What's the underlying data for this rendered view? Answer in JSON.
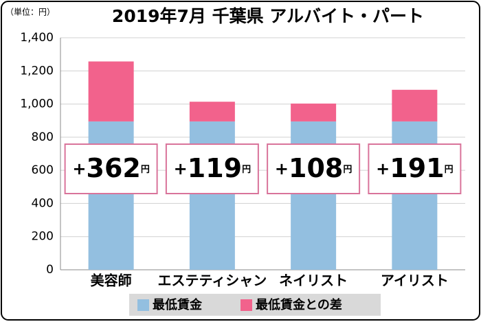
{
  "chart_data": {
    "type": "bar",
    "stacked": true,
    "title": "2019年7月 千葉県 アルバイト・パート",
    "unit_label": "（単位：円）",
    "categories": [
      "美容師",
      "エステティシャン",
      "ネイリスト",
      "アイリスト"
    ],
    "series": [
      {
        "name": "最低賃金",
        "color": "#93bfe0",
        "values": [
          895,
          895,
          895,
          895
        ]
      },
      {
        "name": "最低賃金との差",
        "color": "#f2628c",
        "values": [
          362,
          119,
          108,
          191
        ],
        "value_labels": [
          "+362円",
          "+119円",
          "+108円",
          "+191円"
        ]
      }
    ],
    "ylim": [
      0,
      1400
    ],
    "yticks": [
      0,
      200,
      400,
      600,
      800,
      {
        "value": 1000,
        "label": "1,000"
      },
      {
        "value": 1200,
        "label": "1,200"
      },
      {
        "value": 1400,
        "label": "1,400"
      }
    ],
    "grid": true
  }
}
